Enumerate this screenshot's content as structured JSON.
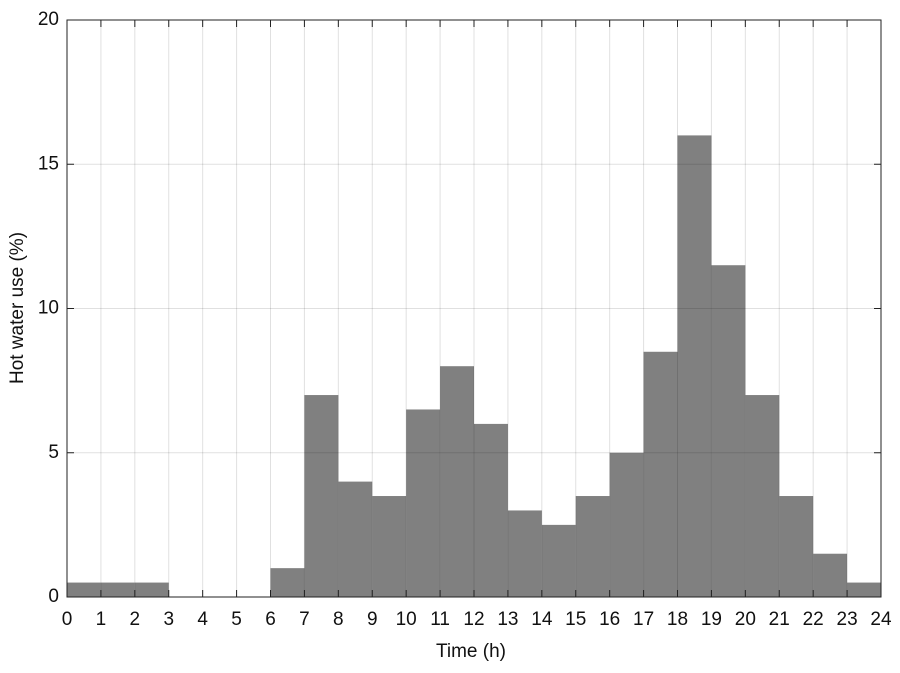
{
  "chart_data": {
    "type": "histogram",
    "x_label": "Time (h)",
    "y_label": "Hot water use (%)",
    "bins": [
      0,
      1,
      2,
      3,
      4,
      5,
      6,
      7,
      8,
      9,
      10,
      11,
      12,
      13,
      14,
      15,
      16,
      17,
      18,
      19,
      20,
      21,
      22,
      23,
      24
    ],
    "values": [
      0.5,
      0.5,
      0.5,
      0,
      0,
      0,
      1,
      7,
      4,
      3.5,
      6.5,
      8,
      6,
      3,
      2.5,
      3.5,
      5,
      8.5,
      16,
      11.5,
      7,
      3.5,
      1.5,
      0.5
    ],
    "color": "#808080",
    "xlim": [
      0,
      24
    ],
    "xticks": [
      0,
      1,
      2,
      3,
      4,
      5,
      6,
      7,
      8,
      9,
      10,
      11,
      12,
      13,
      14,
      15,
      16,
      17,
      18,
      19,
      20,
      21,
      22,
      23,
      24
    ],
    "ylim": [
      0,
      20
    ],
    "yticks": [
      0,
      5,
      10,
      15,
      20
    ],
    "grid": true
  }
}
